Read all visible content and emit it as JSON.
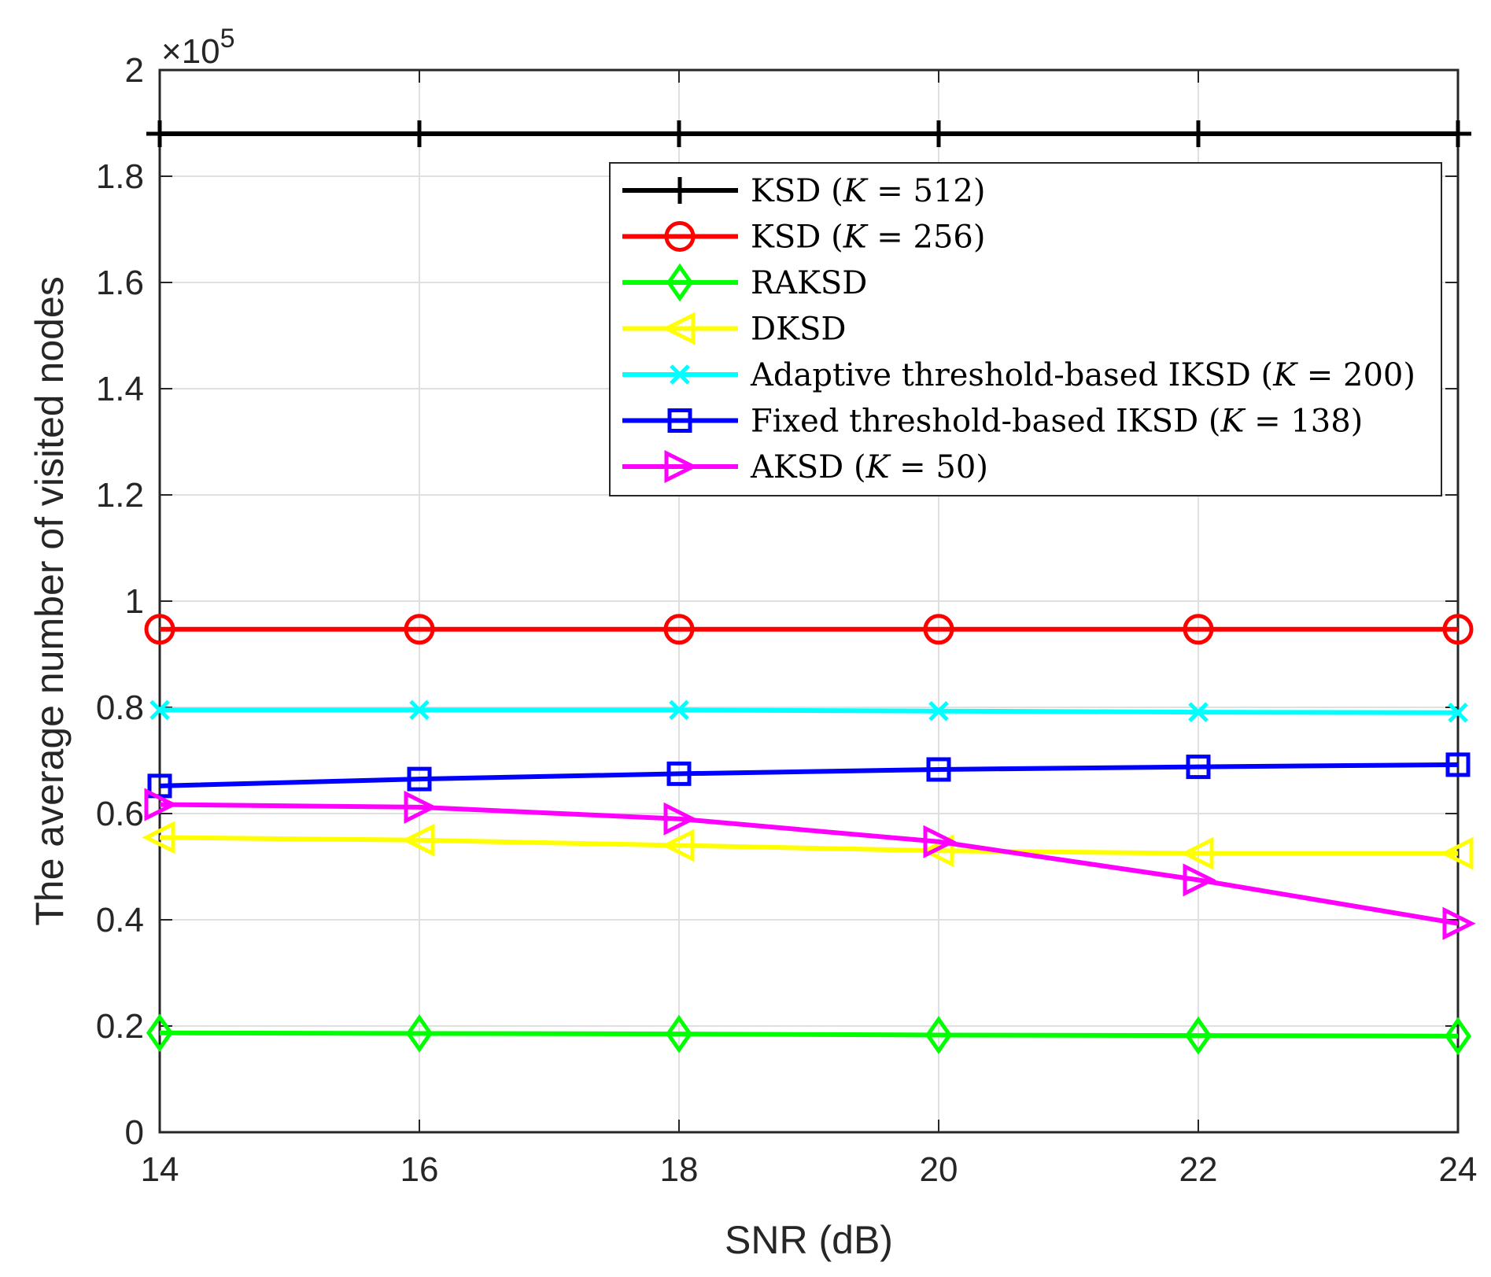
{
  "chart_data": {
    "type": "line",
    "title": "",
    "xlabel": "SNR (dB)",
    "ylabel": "The average number of visited nodes",
    "exponent_label": "×10",
    "exponent_power": "5",
    "x": [
      14,
      16,
      18,
      20,
      22,
      24
    ],
    "xlim": [
      14,
      24
    ],
    "ylim": [
      0,
      2
    ],
    "xticks": [
      "14",
      "16",
      "18",
      "20",
      "22",
      "24"
    ],
    "yticks": [
      "0",
      "0.2",
      "0.4",
      "0.6",
      "0.8",
      "1",
      "1.2",
      "1.4",
      "1.6",
      "1.8",
      "2"
    ],
    "grid": true,
    "legend_position": "top-right",
    "series": [
      {
        "name": "KSD",
        "param": "K = 512",
        "color": "#000000",
        "marker": "plus",
        "values": [
          1.88,
          1.88,
          1.88,
          1.88,
          1.88,
          1.88
        ]
      },
      {
        "name": "KSD",
        "param": "K = 256",
        "color": "#ff0000",
        "marker": "circle",
        "values": [
          0.947,
          0.947,
          0.947,
          0.947,
          0.947,
          0.947
        ]
      },
      {
        "name": "RAKSD",
        "param": "",
        "color": "#00ff00",
        "marker": "diamond",
        "values": [
          0.187,
          0.186,
          0.185,
          0.183,
          0.182,
          0.181
        ]
      },
      {
        "name": "DKSD",
        "param": "",
        "color": "#ffff00",
        "marker": "triangle-left",
        "values": [
          0.555,
          0.55,
          0.54,
          0.53,
          0.525,
          0.525
        ]
      },
      {
        "name": "Adaptive threshold-based IKSD",
        "param": "K = 200",
        "color": "#00ffff",
        "marker": "x",
        "values": [
          0.795,
          0.795,
          0.795,
          0.793,
          0.791,
          0.79
        ]
      },
      {
        "name": "Fixed threshold-based IKSD",
        "param": "K = 138",
        "color": "#0000ff",
        "marker": "square",
        "values": [
          0.652,
          0.665,
          0.675,
          0.683,
          0.688,
          0.692
        ]
      },
      {
        "name": "AKSD",
        "param": "K = 50",
        "color": "#ff00ff",
        "marker": "triangle-right",
        "values": [
          0.617,
          0.612,
          0.59,
          0.547,
          0.475,
          0.393
        ]
      }
    ]
  }
}
